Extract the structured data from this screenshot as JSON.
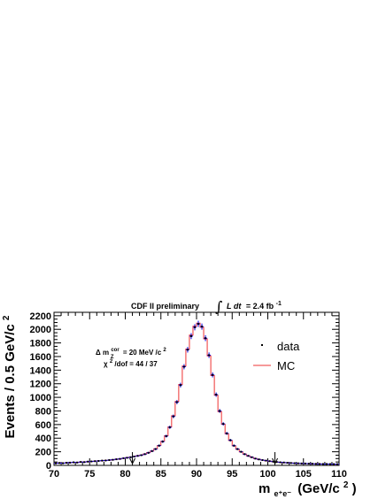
{
  "header": {
    "experiment": "CDF II preliminary",
    "lumi_integral": "∫",
    "lumi_expr": "L dt",
    "lumi_value": "= 2.4 fb",
    "lumi_sup": "-1"
  },
  "annotation": {
    "line1_prefix": "Δ m",
    "line1_sub": "Z",
    "line1_sup": "cor",
    "line1_suffix": "= 20 MeV /c",
    "line1_suffix_sup": "2",
    "line2_prefix": "χ",
    "line2_sup": "2",
    "line2_suffix": "/dof = 44 / 37"
  },
  "colors": {
    "data": "#0000ee",
    "mc": "#ee3333",
    "axis": "#000000"
  },
  "chart_data": {
    "type": "histogram",
    "title": "",
    "xlabel_main": "m",
    "xlabel_sub": "e⁺e⁻",
    "xlabel_units": "(GeV/c",
    "xlabel_units_sup": "2",
    "xlabel_units_close": ")",
    "ylabel": "Events / 0.5 GeV/c",
    "ylabel_sup": "2",
    "xlim": [
      70,
      110
    ],
    "ylim": [
      0,
      2250
    ],
    "xticks": [
      70,
      75,
      80,
      85,
      90,
      95,
      100,
      105,
      110
    ],
    "yticks": [
      0,
      200,
      400,
      600,
      800,
      1000,
      1200,
      1400,
      1600,
      1800,
      2000,
      2200
    ],
    "bin_width": 0.5,
    "fit_window_arrows": [
      81,
      101
    ],
    "legend": [
      {
        "label": "data",
        "marker": "point"
      },
      {
        "label": "MC",
        "marker": "line"
      }
    ],
    "series": [
      {
        "name": "data",
        "x": [
          70.25,
          70.75,
          71.25,
          71.75,
          72.25,
          72.75,
          73.25,
          73.75,
          74.25,
          74.75,
          75.25,
          75.75,
          76.25,
          76.75,
          77.25,
          77.75,
          78.25,
          78.75,
          79.25,
          79.75,
          80.25,
          80.75,
          81.25,
          81.75,
          82.25,
          82.75,
          83.25,
          83.75,
          84.25,
          84.75,
          85.25,
          85.75,
          86.25,
          86.75,
          87.25,
          87.75,
          88.25,
          88.75,
          89.25,
          89.75,
          90.25,
          90.75,
          91.25,
          91.75,
          92.25,
          92.75,
          93.25,
          93.75,
          94.25,
          94.75,
          95.25,
          95.75,
          96.25,
          96.75,
          97.25,
          97.75,
          98.25,
          98.75,
          99.25,
          99.75,
          100.25,
          100.75,
          101.25,
          101.75,
          102.25,
          102.75,
          103.25,
          103.75,
          104.25,
          104.75,
          105.25,
          105.75,
          106.25,
          106.75,
          107.25,
          107.75,
          108.25,
          108.75,
          109.25,
          109.75
        ],
        "values": [
          30,
          35,
          32,
          38,
          40,
          45,
          42,
          50,
          48,
          55,
          58,
          62,
          65,
          70,
          72,
          78,
          82,
          90,
          95,
          105,
          112,
          120,
          130,
          140,
          150,
          165,
          185,
          210,
          240,
          290,
          350,
          430,
          560,
          720,
          930,
          1180,
          1450,
          1700,
          1900,
          2030,
          2080,
          2040,
          1870,
          1620,
          1330,
          1040,
          800,
          610,
          470,
          370,
          290,
          240,
          200,
          165,
          140,
          120,
          100,
          88,
          78,
          70,
          62,
          55,
          50,
          45,
          42,
          38,
          35,
          32,
          30,
          28,
          27,
          25,
          24,
          22,
          21,
          20,
          20,
          19,
          18,
          17
        ]
      },
      {
        "name": "MC",
        "x": [
          70.25,
          70.75,
          71.25,
          71.75,
          72.25,
          72.75,
          73.25,
          73.75,
          74.25,
          74.75,
          75.25,
          75.75,
          76.25,
          76.75,
          77.25,
          77.75,
          78.25,
          78.75,
          79.25,
          79.75,
          80.25,
          80.75,
          81.25,
          81.75,
          82.25,
          82.75,
          83.25,
          83.75,
          84.25,
          84.75,
          85.25,
          85.75,
          86.25,
          86.75,
          87.25,
          87.75,
          88.25,
          88.75,
          89.25,
          89.75,
          90.25,
          90.75,
          91.25,
          91.75,
          92.25,
          92.75,
          93.25,
          93.75,
          94.25,
          94.75,
          95.25,
          95.75,
          96.25,
          96.75,
          97.25,
          97.75,
          98.25,
          98.75,
          99.25,
          99.75,
          100.25,
          100.75,
          101.25,
          101.75,
          102.25,
          102.75,
          103.25,
          103.75,
          104.25,
          104.75,
          105.25,
          105.75,
          106.25,
          106.75,
          107.25,
          107.75,
          108.25,
          108.75,
          109.25,
          109.75
        ],
        "values": [
          32,
          34,
          34,
          37,
          41,
          44,
          44,
          49,
          50,
          54,
          57,
          61,
          66,
          69,
          73,
          77,
          83,
          89,
          96,
          104,
          113,
          121,
          131,
          141,
          152,
          167,
          188,
          212,
          244,
          292,
          355,
          435,
          565,
          730,
          940,
          1190,
          1460,
          1710,
          1915,
          2045,
          2090,
          2030,
          1860,
          1610,
          1320,
          1030,
          790,
          605,
          465,
          365,
          288,
          238,
          198,
          166,
          140,
          119,
          101,
          88,
          78,
          69,
          62,
          55,
          49,
          45,
          41,
          38,
          35,
          32,
          30,
          28,
          26,
          25,
          23,
          22,
          21,
          20,
          19,
          18,
          18,
          17
        ]
      }
    ]
  }
}
